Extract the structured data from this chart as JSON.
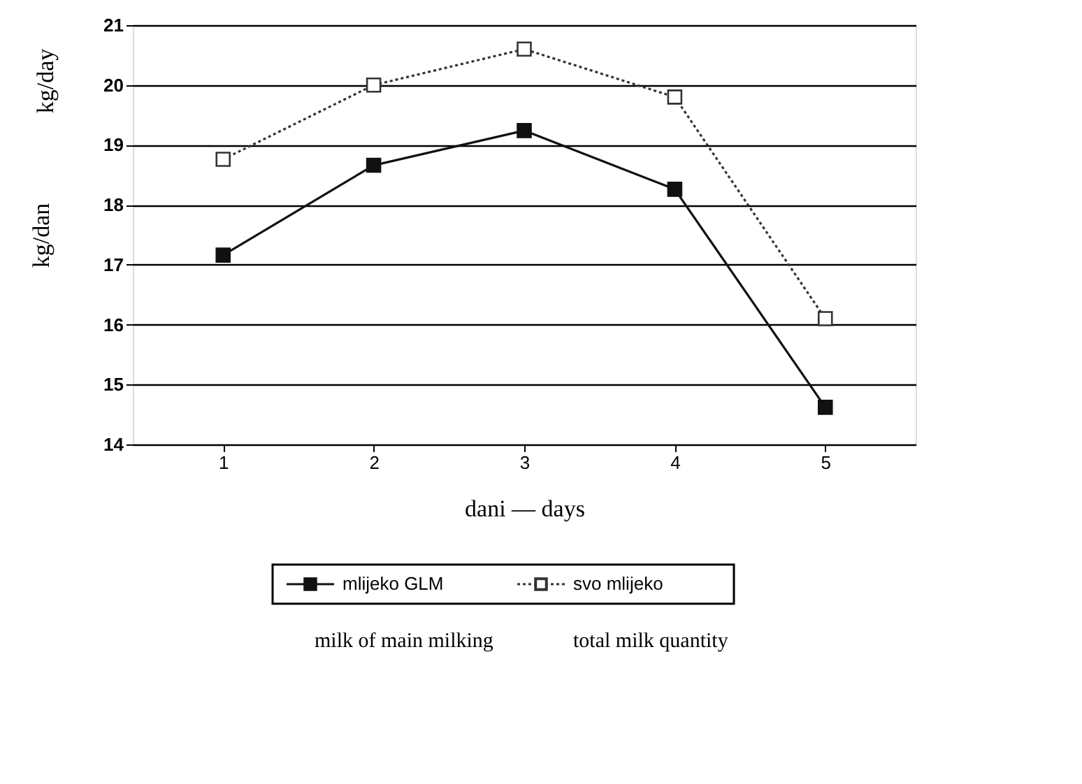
{
  "chart_data": {
    "type": "line",
    "xlabel": "dani — days",
    "ylabel": "kg/dan",
    "categories": [
      "1",
      "2",
      "3",
      "4",
      "5"
    ],
    "series": [
      {
        "name": "mlijeko GLM",
        "color": "#111111",
        "values": [
          17.16,
          18.66,
          19.24,
          18.26,
          14.62
        ],
        "line_style": "solid"
      },
      {
        "name": "svo mlijeko",
        "color": "#333333",
        "values": [
          18.76,
          20.0,
          20.6,
          19.8,
          16.1
        ],
        "line_style": "dotted"
      }
    ],
    "ylim": [
      14,
      21
    ],
    "yticks": [
      14,
      15,
      16,
      17,
      18,
      19,
      20,
      21
    ],
    "grid": "y",
    "legend": "bottom",
    "marker": "square",
    "annotations": [
      "kg/day",
      "milk of main milking",
      "total milk quantity"
    ]
  }
}
